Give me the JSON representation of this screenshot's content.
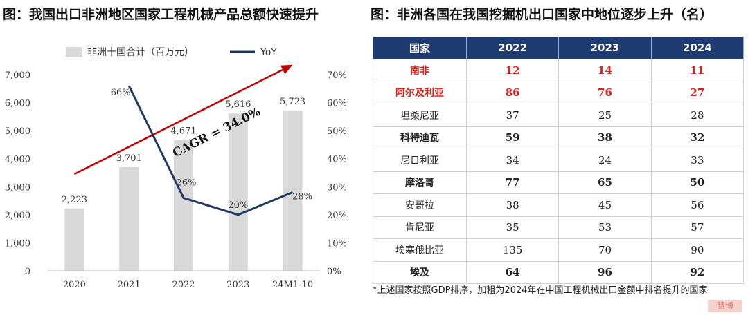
{
  "left_panel": {
    "title": "图：我国出口非洲地区国家工程机械产品总额快速提升"
  },
  "right_panel": {
    "title": "图：非洲各国在我国挖掘机出口国家中地位逐步上升（名）"
  },
  "chart_data": {
    "type": "bar",
    "categories": [
      "2020",
      "2021",
      "2022",
      "2023",
      "24M1-10"
    ],
    "series": [
      {
        "name": "非洲十国合计（百万元）",
        "values": [
          2223,
          3701,
          4671,
          5616,
          5723
        ],
        "value_labels": [
          "2,223",
          "3,701",
          "4,671",
          "5,616",
          "5,723"
        ],
        "color": "#d9d9d9",
        "axis": "left"
      },
      {
        "name": "YoY",
        "type": "line",
        "values": [
          null,
          66,
          26,
          20,
          28
        ],
        "value_labels": [
          "",
          "66%",
          "26%",
          "20%",
          "28%"
        ],
        "color": "#1f3864",
        "axis": "right"
      }
    ],
    "left_axis": {
      "min": 0,
      "max": 7000,
      "ticks": [
        0,
        1000,
        2000,
        3000,
        4000,
        5000,
        6000,
        7000
      ],
      "tick_labels": [
        "0",
        "1,000",
        "2,000",
        "3,000",
        "4,000",
        "5,000",
        "6,000",
        "7,000"
      ]
    },
    "right_axis": {
      "min": 0,
      "max": 70,
      "ticks": [
        0,
        10,
        20,
        30,
        40,
        50,
        60,
        70
      ],
      "tick_labels": [
        "0%",
        "10%",
        "20%",
        "30%",
        "40%",
        "50%",
        "60%",
        "70%"
      ]
    },
    "annotation": {
      "text": "CAGR = 34.0%",
      "color": "#c00000",
      "arrow_from": {
        "x": "2020",
        "y": 3450
      },
      "arrow_to": {
        "x": "24M1-10",
        "y": 7350
      }
    },
    "legend_position": "top",
    "grid": false
  },
  "table": {
    "headers": [
      "国家",
      "2022",
      "2023",
      "2024"
    ],
    "rows": [
      {
        "name": "南非",
        "values": [
          "12",
          "14",
          "11"
        ],
        "style": "red"
      },
      {
        "name": "阿尔及利亚",
        "values": [
          "86",
          "76",
          "27"
        ],
        "style": "red"
      },
      {
        "name": "坦桑尼亚",
        "values": [
          "37",
          "25",
          "28"
        ],
        "style": "normal"
      },
      {
        "name": "科特迪瓦",
        "values": [
          "59",
          "38",
          "32"
        ],
        "style": "bold"
      },
      {
        "name": "尼日利亚",
        "values": [
          "34",
          "24",
          "33"
        ],
        "style": "normal"
      },
      {
        "name": "摩洛哥",
        "values": [
          "77",
          "65",
          "50"
        ],
        "style": "bold"
      },
      {
        "name": "安哥拉",
        "values": [
          "38",
          "45",
          "56"
        ],
        "style": "normal"
      },
      {
        "name": "肯尼亚",
        "values": [
          "35",
          "53",
          "57"
        ],
        "style": "normal"
      },
      {
        "name": "埃塞俄比亚",
        "values": [
          "135",
          "70",
          "90"
        ],
        "style": "normal"
      },
      {
        "name": "埃及",
        "values": [
          "64",
          "96",
          "92"
        ],
        "style": "bold"
      }
    ]
  },
  "footnote": "*上述国家按照GDP排序，加粗为2024年在中国工程机械出口金额中排名提升的国家",
  "watermark": {
    "text": "慧博",
    "color": "#d25a50"
  }
}
